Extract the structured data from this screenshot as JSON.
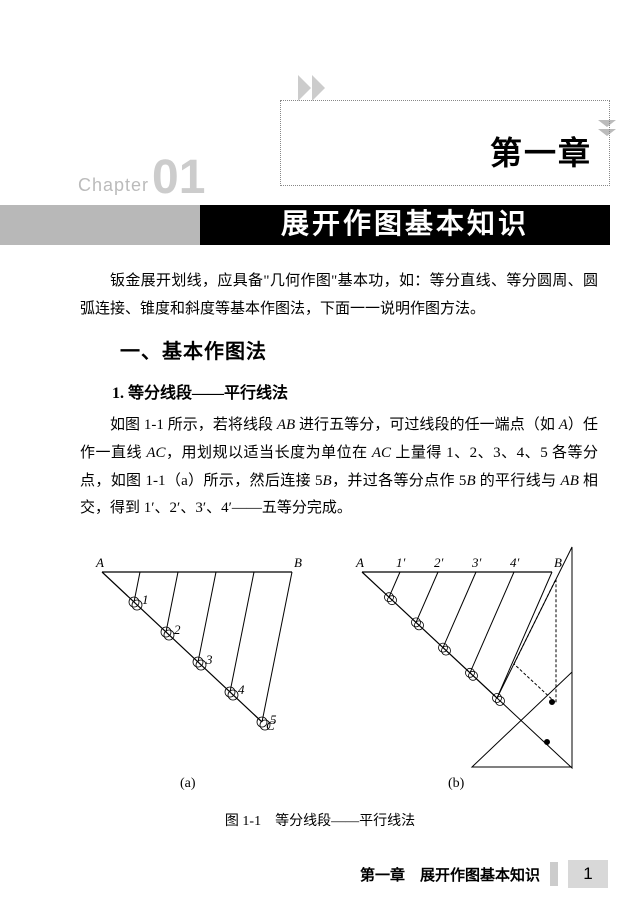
{
  "header": {
    "chapter_cn": "第一章",
    "chapter_en": "Chapter",
    "chapter_num": "01",
    "title": "展开作图基本知识"
  },
  "intro": "钣金展开划线，应具备\"几何作图\"基本功，如：等分直线、等分圆周、圆弧连接、锥度和斜度等基本作图法，下面一一说明作图方法。",
  "section1": {
    "heading": "一、基本作图法",
    "sub1": {
      "heading": "1. 等分线段——平行线法",
      "body": "如图 1-1 所示，若将线段 AB 进行五等分，可过线段的任一端点（如 A）任作一直线 AC，用划规以适当长度为单位在 AC 上量得 1、2、3、4、5 各等分点，如图 1-1（a）所示，然后连接 5B，并过各等分点作 5B 的平行线与 AB 相交，得到 1′、2′、3′、4′——五等分完成。"
    }
  },
  "figure": {
    "label_a": "(a)",
    "label_b": "(b)",
    "caption": "图 1-1　等分线段——平行线法",
    "points_a": {
      "A": "A",
      "B": "B",
      "C": "C",
      "nums": [
        "1",
        "2",
        "3",
        "4",
        "5"
      ]
    },
    "points_b": {
      "A": "A",
      "B": "B",
      "primes": [
        "1′",
        "2′",
        "3′",
        "4′"
      ]
    },
    "colors": {
      "stroke": "#000000",
      "fill_triangle": "#e8e8e8"
    }
  },
  "footer": {
    "text": "第一章　展开作图基本知识",
    "page": "1"
  }
}
